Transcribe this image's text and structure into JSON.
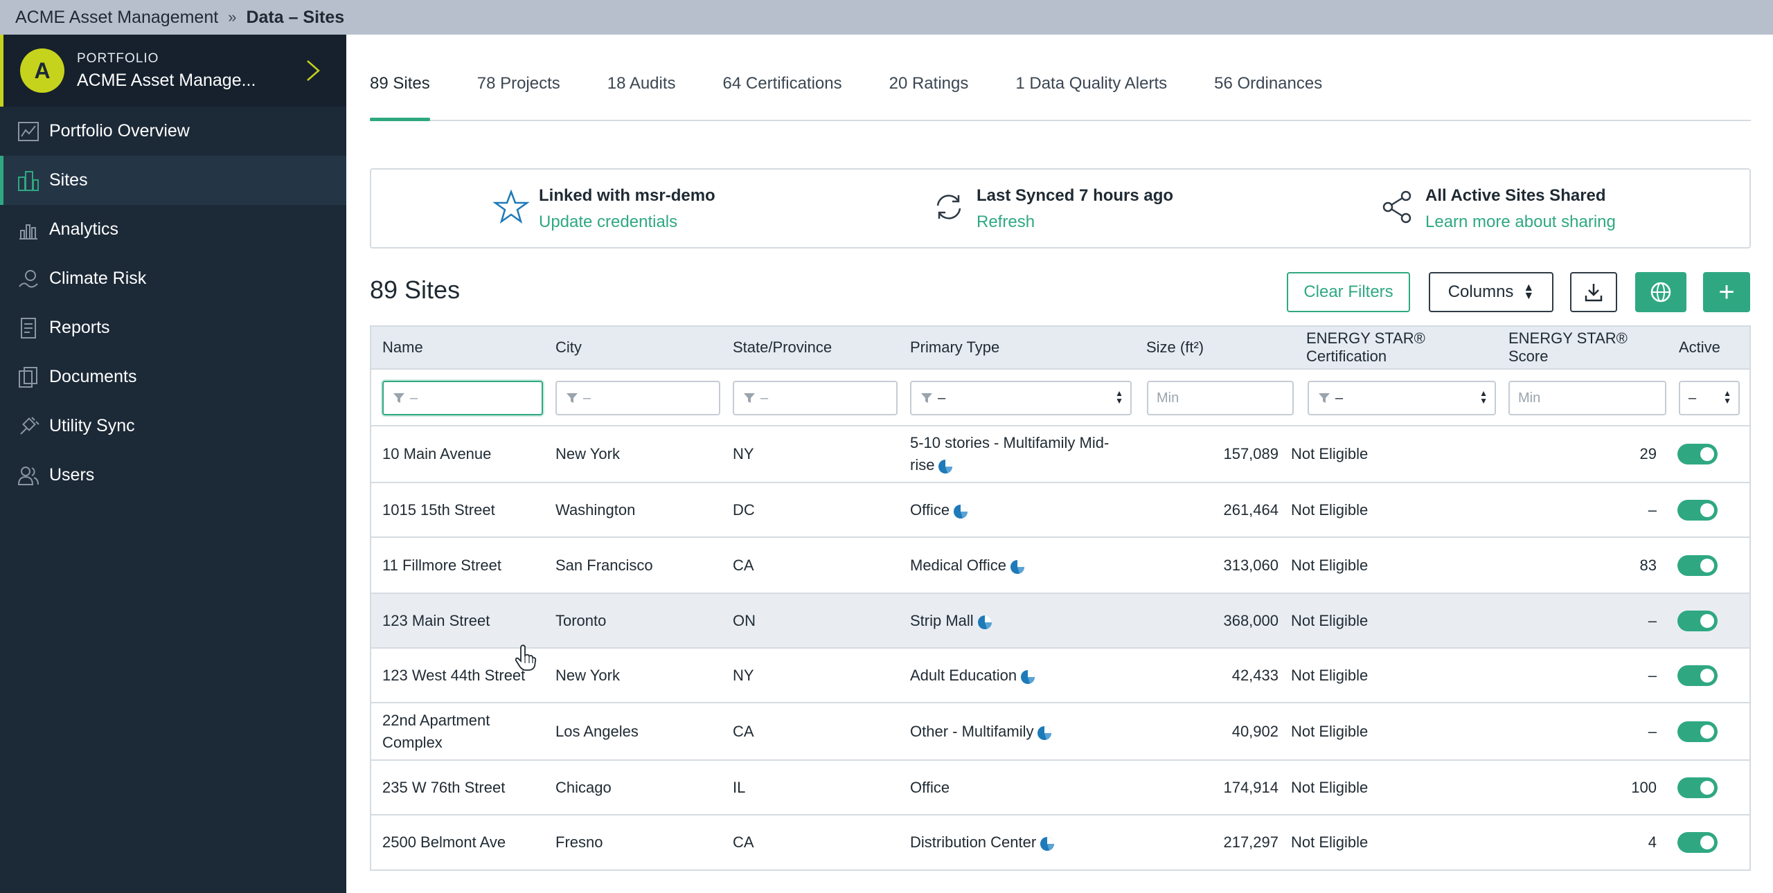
{
  "breadcrumb": {
    "root": "ACME Asset Management",
    "separator": "»",
    "current": "Data – Sites"
  },
  "portfolio": {
    "avatar_letter": "A",
    "label": "PORTFOLIO",
    "name": "ACME Asset Manage..."
  },
  "nav": [
    {
      "label": "Portfolio Overview",
      "icon": "chart-line-icon"
    },
    {
      "label": "Sites",
      "icon": "buildings-icon",
      "active": true
    },
    {
      "label": "Analytics",
      "icon": "analytics-icon"
    },
    {
      "label": "Climate Risk",
      "icon": "climate-pin-icon"
    },
    {
      "label": "Reports",
      "icon": "report-icon"
    },
    {
      "label": "Documents",
      "icon": "documents-icon"
    },
    {
      "label": "Utility Sync",
      "icon": "plug-icon"
    },
    {
      "label": "Users",
      "icon": "users-icon"
    }
  ],
  "tabs": [
    "89 Sites",
    "78 Projects",
    "18 Audits",
    "64 Certifications",
    "20 Ratings",
    "1 Data Quality Alerts",
    "56 Ordinances"
  ],
  "info": {
    "linked_title": "Linked with msr-demo",
    "linked_link": "Update credentials",
    "sync_title": "Last Synced 7 hours ago",
    "sync_link": "Refresh",
    "share_title": "All Active Sites Shared",
    "share_link": "Learn more about sharing"
  },
  "section_title": "89 Sites",
  "toolbar": {
    "clear_filters": "Clear Filters",
    "columns": "Columns",
    "plus": "+"
  },
  "table": {
    "columns": [
      "Name",
      "City",
      "State/Province",
      "Primary Type",
      "Size (ft²)",
      "ENERGY STAR® Certification",
      "ENERGY STAR® Score",
      "Active"
    ],
    "filters": {
      "name": "–",
      "city": "–",
      "state": "–",
      "primary_type": "–",
      "size_placeholder": "Min",
      "cert": "–",
      "score_placeholder": "Min",
      "active": "–"
    },
    "rows": [
      {
        "name": "10 Main Avenue",
        "city": "New York",
        "state": "NY",
        "type": "5-10 stories - Multifamily Mid-rise",
        "pie": true,
        "size": "157,089",
        "cert": "Not Eligible",
        "score": "29"
      },
      {
        "name": "1015 15th Street",
        "city": "Washington",
        "state": "DC",
        "type": "Office",
        "pie": true,
        "size": "261,464",
        "cert": "Not Eligible",
        "score": "–"
      },
      {
        "name": "11 Fillmore Street",
        "city": "San Francisco",
        "state": "CA",
        "type": "Medical Office",
        "pie": true,
        "size": "313,060",
        "cert": "Not Eligible",
        "score": "83"
      },
      {
        "name": "123 Main Street",
        "city": "Toronto",
        "state": "ON",
        "type": "Strip Mall",
        "pie": true,
        "size": "368,000",
        "cert": "Not Eligible",
        "score": "–",
        "hover": true
      },
      {
        "name": "123 West 44th Street",
        "city": "New York",
        "state": "NY",
        "type": "Adult Education",
        "pie": true,
        "size": "42,433",
        "cert": "Not Eligible",
        "score": "–"
      },
      {
        "name": "22nd Apartment Complex",
        "city": "Los Angeles",
        "state": "CA",
        "type": "Other - Multifamily",
        "pie": true,
        "size": "40,902",
        "cert": "Not Eligible",
        "score": "–"
      },
      {
        "name": "235 W 76th Street",
        "city": "Chicago",
        "state": "IL",
        "type": "Office",
        "pie": false,
        "size": "174,914",
        "cert": "Not Eligible",
        "score": "100"
      },
      {
        "name": "2500 Belmont Ave",
        "city": "Fresno",
        "state": "CA",
        "type": "Distribution Center",
        "pie": true,
        "size": "217,297",
        "cert": "Not Eligible",
        "score": "4"
      }
    ]
  },
  "colors": {
    "accent": "#2fa882",
    "sidebar": "#1c2937",
    "avatar": "#c6d31c",
    "pie": "#1e7ab8"
  }
}
